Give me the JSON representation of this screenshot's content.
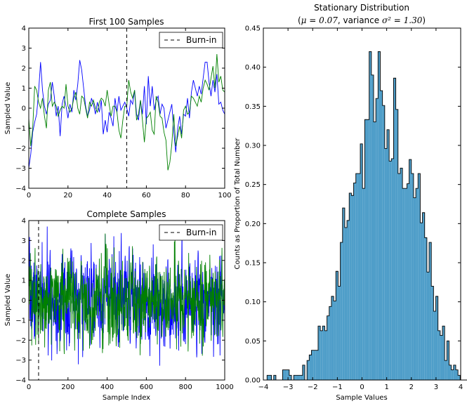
{
  "colors": {
    "blue": "#0000ff",
    "green": "#008000",
    "hist_fill": "#4f9ec9",
    "axis": "#000000"
  },
  "charts": [
    {
      "title": "First 100 Samples",
      "ylabel": "Sampled Value",
      "xlim": [
        0,
        100
      ],
      "ylim": [
        -4,
        4
      ],
      "xticks": [
        0,
        20,
        40,
        60,
        80,
        100
      ],
      "yticks": [
        -4,
        -3,
        -2,
        -1,
        0,
        1,
        2,
        3,
        4
      ],
      "burnin": 50,
      "legend": {
        "label": "Burn-in"
      }
    },
    {
      "title": "Complete Samples",
      "ylabel": "Sampled Value",
      "xlabel": "Sample Index",
      "xlim": [
        0,
        1000
      ],
      "ylim": [
        -4,
        4
      ],
      "xticks": [
        0,
        200,
        400,
        600,
        800,
        1000
      ],
      "yticks": [
        -4,
        -3,
        -2,
        -1,
        0,
        1,
        2,
        3,
        4
      ],
      "burnin": 50,
      "legend": {
        "label": "Burn-in"
      }
    },
    {
      "title": "Stationary Distribution",
      "subtitle": {
        "prefix": "(",
        "mu": "μ = 0.07",
        "mid": ", variance ",
        "var": "σ² = 1.30",
        "suffix": ")"
      },
      "xlabel": "Sample Values",
      "ylabel": "Counts as Proportion of Total Number",
      "xlim": [
        -4,
        4
      ],
      "ylim": [
        0,
        0.45
      ],
      "xticks": [
        -4,
        -3,
        -2,
        -1,
        0,
        1,
        2,
        3,
        4
      ],
      "yticks": [
        "0.00",
        "0.05",
        "0.10",
        "0.15",
        "0.20",
        "0.25",
        "0.30",
        "0.35",
        "0.40",
        "0.45"
      ]
    }
  ],
  "chart_data": [
    {
      "type": "line",
      "series": [
        {
          "color": "blue",
          "x": [
            0,
            1,
            2,
            3,
            4,
            5,
            6,
            7,
            8,
            9,
            10,
            11,
            12,
            13,
            14,
            15,
            16,
            17,
            18,
            19,
            20,
            21,
            22,
            23,
            24,
            25,
            26,
            27,
            28,
            29,
            30,
            31,
            32,
            33,
            34,
            35,
            36,
            37,
            38,
            39,
            40,
            41,
            42,
            43,
            44,
            45,
            46,
            47,
            48,
            49,
            50,
            51,
            52,
            53,
            54,
            55,
            56,
            57,
            58,
            59,
            60,
            61,
            62,
            63,
            64,
            65,
            66,
            67,
            68,
            69,
            70,
            71,
            72,
            73,
            74,
            75,
            76,
            77,
            78,
            79,
            80,
            81,
            82,
            83,
            84,
            85,
            86,
            87,
            88,
            89,
            90,
            91,
            92,
            93,
            94,
            95,
            96,
            97,
            98,
            99,
            100
          ],
          "y": [
            -3.0,
            -2.3,
            -1.2,
            -0.7,
            -0.3,
            0.8,
            2.3,
            0.9,
            0.1,
            -0.3,
            0.2,
            0.4,
            1.3,
            0.6,
            -0.4,
            0.1,
            -1.4,
            0.2,
            0.6,
            0.1,
            -0.5,
            0.2,
            -0.2,
            0.9,
            0.4,
            1.2,
            2.4,
            1.9,
            1.0,
            0.1,
            -0.4,
            -0.1,
            0.5,
            0.2,
            -0.3,
            0.3,
            -0.2,
            0.4,
            -1.3,
            -0.6,
            -1.2,
            -0.2,
            -0.5,
            -0.9,
            0.5,
            -0.2,
            0.6,
            -0.1,
            0.1,
            0.3,
            0.0,
            -0.4,
            0.4,
            0.2,
            0.9,
            -0.3,
            -0.6,
            0.4,
            -0.3,
            1.1,
            -0.8,
            1.6,
            0.1,
            1.1,
            -0.1,
            0.4,
            0.6,
            -0.3,
            0.2,
            0.0,
            -1.0,
            -0.6,
            -0.2,
            0.2,
            -1.2,
            -2.2,
            -1.0,
            -0.4,
            -1.3,
            -0.3,
            -0.4,
            0.5,
            -0.5,
            0.8,
            1.4,
            1.0,
            0.6,
            1.1,
            0.7,
            1.5,
            2.3,
            2.3,
            1.3,
            0.6,
            1.4,
            0.8,
            1.7,
            0.2,
            0.3,
            -0.1,
            -0.3
          ]
        },
        {
          "color": "green",
          "x": [
            0,
            1,
            2,
            3,
            4,
            5,
            6,
            7,
            8,
            9,
            10,
            11,
            12,
            13,
            14,
            15,
            16,
            17,
            18,
            19,
            20,
            21,
            22,
            23,
            24,
            25,
            26,
            27,
            28,
            29,
            30,
            31,
            32,
            33,
            34,
            35,
            36,
            37,
            38,
            39,
            40,
            41,
            42,
            43,
            44,
            45,
            46,
            47,
            48,
            49,
            50,
            51,
            52,
            53,
            54,
            55,
            56,
            57,
            58,
            59,
            60,
            61,
            62,
            63,
            64,
            65,
            66,
            67,
            68,
            69,
            70,
            71,
            72,
            73,
            74,
            75,
            76,
            77,
            78,
            79,
            80,
            81,
            82,
            83,
            84,
            85,
            86,
            87,
            88,
            89,
            90,
            91,
            92,
            93,
            94,
            95,
            96,
            97,
            98,
            99,
            100
          ],
          "y": [
            -0.5,
            -1.9,
            -1.0,
            1.1,
            0.9,
            0.3,
            0.0,
            0.5,
            -0.4,
            -1.0,
            0.9,
            1.3,
            0.1,
            0.3,
            0.1,
            -0.4,
            -0.1,
            0.1,
            0.0,
            1.2,
            0.1,
            -0.2,
            0.0,
            0.5,
            0.8,
            0.0,
            -0.3,
            0.6,
            0.5,
            0.0,
            -0.5,
            0.3,
            0.1,
            0.4,
            0.0,
            -0.2,
            0.3,
            0.5,
            0.4,
            0.1,
            0.9,
            0.2,
            -0.4,
            0.1,
            0.1,
            -0.2,
            -1.1,
            -1.5,
            -0.6,
            0.1,
            0.1,
            1.4,
            0.8,
            0.5,
            0.9,
            -0.6,
            -0.3,
            0.4,
            -0.6,
            -1.7,
            -0.5,
            -0.4,
            -0.2,
            -1.1,
            -1.3,
            0.6,
            0.3,
            -0.4,
            -0.5,
            -1.2,
            -1.6,
            -3.1,
            -2.7,
            -1.8,
            -0.3,
            -1.9,
            -1.4,
            -0.9,
            -1.5,
            -0.1,
            0.1,
            -0.3,
            -0.2,
            0.6,
            0.5,
            0.3,
            0.1,
            0.6,
            0.3,
            1.0,
            1.4,
            1.2,
            0.9,
            1.5,
            2.1,
            1.0,
            2.7,
            1.3,
            1.6,
            0.9,
            0.8
          ]
        }
      ]
    },
    {
      "type": "line",
      "series": [
        {
          "color": "blue",
          "seed": 7,
          "n": 1000,
          "approximate": true
        },
        {
          "color": "green",
          "seed": 42,
          "n": 1000,
          "approximate": true
        }
      ]
    },
    {
      "type": "histogram",
      "bin_edges_start": -3.85,
      "bin_width": 0.09,
      "values": [
        0.006,
        0.006,
        0.0,
        0.006,
        0.0,
        0.0,
        0.0,
        0.013,
        0.013,
        0.013,
        0.006,
        0.0,
        0.006,
        0.006,
        0.006,
        0.006,
        0.019,
        0.0,
        0.025,
        0.032,
        0.038,
        0.038,
        0.038,
        0.069,
        0.063,
        0.069,
        0.063,
        0.082,
        0.094,
        0.107,
        0.101,
        0.139,
        0.12,
        0.176,
        0.22,
        0.195,
        0.204,
        0.239,
        0.236,
        0.252,
        0.264,
        0.264,
        0.302,
        0.245,
        0.333,
        0.333,
        0.42,
        0.39,
        0.33,
        0.36,
        0.42,
        0.37,
        0.351,
        0.296,
        0.32,
        0.28,
        0.283,
        0.386,
        0.346,
        0.264,
        0.271,
        0.245,
        0.245,
        0.251,
        0.282,
        0.264,
        0.233,
        0.245,
        0.264,
        0.201,
        0.214,
        0.182,
        0.138,
        0.176,
        0.12,
        0.088,
        0.107,
        0.063,
        0.057,
        0.069,
        0.025,
        0.05,
        0.019,
        0.013,
        0.019,
        0.013,
        0.006,
        0.0,
        0.0,
        0.0,
        0.0,
        0.0,
        0.0,
        0.0,
        0.0,
        0.0,
        0.0,
        0.006
      ]
    }
  ]
}
